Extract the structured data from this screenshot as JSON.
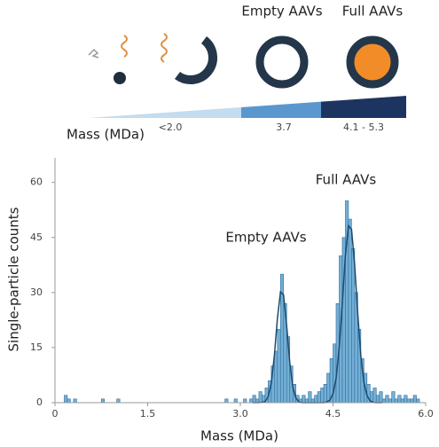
{
  "illustration": {
    "labels": [
      "Empty AAVs",
      "Full AAVs"
    ],
    "mass_label": "Mass (MDa)",
    "mass_values": [
      "<2.0",
      "3.7",
      "4.1 - 5.3"
    ]
  },
  "chart_data": {
    "type": "histogram",
    "xlabel": "Mass (MDa)",
    "ylabel": "Single-particle counts",
    "annotations": [
      "Empty AAVs",
      "Full AAVs"
    ],
    "color": "#74afd6",
    "edge_color": "#2f6f9f",
    "bins": [
      0,
      0.05,
      0.1,
      0.15,
      0.2,
      0.25,
      0.3,
      0.35,
      0.4,
      0.45,
      0.5,
      0.55,
      0.6,
      0.65,
      0.7,
      0.75,
      0.8,
      0.85,
      0.9,
      0.95,
      1,
      1.05,
      1.1,
      1.15,
      1.2,
      1.25,
      1.3,
      1.35,
      1.4,
      1.45,
      1.5,
      1.55,
      1.6,
      1.65,
      1.7,
      1.75,
      1.8,
      1.85,
      1.9,
      1.95,
      2,
      2.05,
      2.1,
      2.15,
      2.2,
      2.25,
      2.3,
      2.35,
      2.4,
      2.45,
      2.5,
      2.55,
      2.6,
      2.65,
      2.7,
      2.75,
      2.8,
      2.85,
      2.9,
      2.95,
      3,
      3.05,
      3.1,
      3.15,
      3.2,
      3.25,
      3.3,
      3.35,
      3.4,
      3.45,
      3.5,
      3.55,
      3.6,
      3.65,
      3.7,
      3.75,
      3.8,
      3.85,
      3.9,
      3.95,
      4,
      4.05,
      4.1,
      4.15,
      4.2,
      4.25,
      4.3,
      4.35,
      4.4,
      4.45,
      4.5,
      4.55,
      4.6,
      4.65,
      4.7,
      4.75,
      4.8,
      4.85,
      4.9,
      4.95,
      5,
      5.05,
      5.1,
      5.15,
      5.2,
      5.25,
      5.3,
      5.35,
      5.4,
      5.45,
      5.5,
      5.55,
      5.6,
      5.65,
      5.7,
      5.75,
      5.8,
      5.85,
      5.9,
      5.95,
      6
    ],
    "values": [
      0,
      0,
      0,
      2,
      1,
      0,
      1,
      0,
      0,
      0,
      0,
      0,
      0,
      0,
      0,
      1,
      0,
      0,
      0,
      0,
      1,
      0,
      0,
      0,
      0,
      0,
      0,
      0,
      0,
      0,
      0,
      0,
      0,
      0,
      0,
      0,
      0,
      0,
      0,
      0,
      0,
      0,
      0,
      0,
      0,
      0,
      0,
      0,
      0,
      0,
      0,
      0,
      0,
      0,
      0,
      1,
      0,
      0,
      1,
      0,
      0,
      1,
      0,
      1,
      2,
      1,
      3,
      2,
      4,
      6,
      10,
      14,
      20,
      35,
      27,
      18,
      10,
      5,
      2,
      1,
      2,
      1,
      3,
      1,
      2,
      3,
      4,
      5,
      8,
      12,
      16,
      27,
      40,
      45,
      55,
      50,
      42,
      30,
      20,
      12,
      8,
      5,
      3,
      4,
      2,
      3,
      1,
      2,
      1,
      3,
      1,
      2,
      1,
      2,
      1,
      1,
      2,
      1,
      0,
      0
    ],
    "fit": {
      "color": "#1d4a6b",
      "x": [
        3.2,
        3.25,
        3.3,
        3.35,
        3.4,
        3.45,
        3.5,
        3.55,
        3.6,
        3.65,
        3.7,
        3.75,
        3.8,
        3.85,
        3.9,
        3.95,
        4,
        4.05,
        4.1,
        4.15,
        4.2,
        4.25,
        4.3,
        4.35,
        4.4,
        4.45,
        4.5,
        4.55,
        4.6,
        4.65,
        4.7,
        4.75,
        4.8,
        4.85,
        4.9,
        4.95,
        5,
        5.05,
        5.1,
        5.15,
        5.2,
        5.25,
        5.3
      ],
      "values": [
        0,
        0,
        0,
        0.1,
        0.3,
        1.6,
        5.2,
        12.7,
        22.9,
        30.2,
        29.3,
        20.9,
        10.9,
        4.2,
        1.2,
        0.2,
        0,
        0,
        0,
        0,
        0,
        0,
        0,
        0,
        0.2,
        0.7,
        2.4,
        6.6,
        14.9,
        27,
        40,
        48.2,
        47.2,
        37.6,
        24.4,
        12.8,
        5.5,
        1.9,
        0.5,
        0.1,
        0,
        0,
        0
      ]
    },
    "xlim": [
      0,
      6
    ],
    "xticks": [
      0,
      1.5,
      {
        "value": 3,
        "label": "3.0"
      },
      4.5,
      {
        "value": 6,
        "label": "6.0"
      }
    ],
    "ylim": [
      0,
      65
    ],
    "yticks": [
      0,
      15,
      30,
      45,
      60
    ]
  }
}
